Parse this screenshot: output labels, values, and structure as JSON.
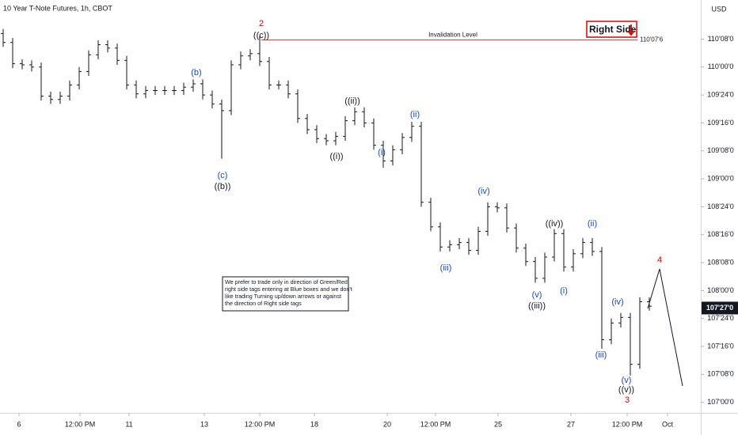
{
  "chart_data": {
    "type": "ohlc",
    "title": "10 Year T-Note Futures, 1h, CBOT",
    "currency": "USD",
    "color": "#131722",
    "open": [
      110.3,
      110.22,
      110.03,
      110.02,
      110.0,
      109.74,
      109.71,
      109.74,
      109.84,
      109.96,
      110.11,
      110.2,
      110.17,
      110.06,
      109.84,
      109.76,
      109.79,
      109.79,
      109.79,
      109.79,
      109.82,
      109.85,
      109.75,
      109.67,
      109.61,
      110.02,
      110.1,
      110.12,
      110.05,
      109.84,
      109.84,
      109.76,
      109.54,
      109.44,
      109.36,
      109.34,
      109.38,
      109.52,
      109.6,
      109.5,
      109.3,
      109.16,
      109.26,
      109.37,
      109.47,
      108.79,
      108.57,
      108.39,
      108.41,
      108.43,
      108.36,
      108.53,
      108.75,
      108.74,
      108.56,
      108.38,
      108.26,
      108.11,
      108.3,
      108.51,
      108.21,
      108.33,
      108.43,
      108.35,
      107.56,
      107.71,
      107.76,
      107.34,
      107.9
    ],
    "high": [
      110.34,
      110.26,
      110.07,
      110.06,
      110.04,
      109.78,
      109.78,
      109.88,
      110.0,
      110.15,
      110.24,
      110.24,
      110.21,
      110.1,
      109.88,
      109.83,
      109.83,
      109.83,
      109.83,
      109.86,
      109.89,
      109.89,
      109.79,
      109.71,
      110.06,
      110.14,
      110.16,
      110.28,
      110.09,
      109.88,
      109.88,
      109.8,
      109.58,
      109.48,
      109.4,
      109.42,
      109.56,
      109.64,
      109.64,
      109.54,
      109.34,
      109.3,
      109.41,
      109.51,
      109.51,
      108.83,
      108.61,
      108.45,
      108.47,
      108.47,
      108.57,
      108.79,
      108.79,
      108.78,
      108.6,
      108.42,
      108.3,
      108.34,
      108.55,
      108.55,
      108.37,
      108.47,
      108.47,
      108.39,
      107.75,
      107.8,
      107.8,
      107.94,
      107.94
    ],
    "low": [
      110.18,
      109.99,
      109.98,
      109.96,
      109.7,
      109.67,
      109.67,
      109.7,
      109.8,
      109.92,
      110.07,
      110.13,
      110.02,
      109.8,
      109.72,
      109.72,
      109.75,
      109.75,
      109.75,
      109.75,
      109.78,
      109.71,
      109.63,
      109.18,
      109.57,
      109.98,
      110.06,
      110.01,
      109.8,
      109.8,
      109.72,
      109.5,
      109.4,
      109.32,
      109.3,
      109.3,
      109.34,
      109.48,
      109.46,
      109.26,
      109.1,
      109.12,
      109.22,
      109.33,
      108.75,
      108.53,
      108.35,
      108.35,
      108.37,
      108.32,
      108.32,
      108.49,
      108.7,
      108.52,
      108.34,
      108.22,
      108.07,
      108.07,
      108.26,
      108.17,
      108.17,
      108.29,
      108.31,
      107.48,
      107.52,
      107.67,
      107.24,
      107.3,
      107.82
    ],
    "close": [
      110.22,
      110.03,
      110.02,
      110.0,
      109.74,
      109.71,
      109.74,
      109.84,
      109.96,
      110.11,
      110.2,
      110.17,
      110.06,
      109.84,
      109.76,
      109.79,
      109.79,
      109.79,
      109.79,
      109.82,
      109.85,
      109.75,
      109.67,
      109.61,
      110.02,
      110.1,
      110.12,
      110.05,
      109.84,
      109.84,
      109.76,
      109.54,
      109.44,
      109.36,
      109.34,
      109.38,
      109.52,
      109.6,
      109.5,
      109.3,
      109.16,
      109.26,
      109.37,
      109.47,
      108.79,
      108.57,
      108.39,
      108.41,
      108.43,
      108.36,
      108.53,
      108.75,
      108.74,
      108.56,
      108.38,
      108.26,
      108.11,
      108.3,
      108.51,
      108.21,
      108.33,
      108.43,
      108.35,
      107.56,
      107.71,
      107.76,
      107.34,
      107.9,
      107.86
    ],
    "xlim": [
      -0.333,
      73.0
    ],
    "xticks": [
      {
        "value": 1.67,
        "label": "6"
      },
      {
        "value": 8.08,
        "label": "12:00 PM"
      },
      {
        "value": 13.25,
        "label": "11"
      },
      {
        "value": 21.17,
        "label": "13"
      },
      {
        "value": 27.0,
        "label": "12:00 PM"
      },
      {
        "value": 32.75,
        "label": "18"
      },
      {
        "value": 40.42,
        "label": "20"
      },
      {
        "value": 45.5,
        "label": "12:00 PM"
      },
      {
        "value": 52.08,
        "label": "25"
      },
      {
        "value": 59.75,
        "label": "27"
      },
      {
        "value": 65.67,
        "label": "12:00 PM"
      },
      {
        "value": 69.92,
        "label": "Oct"
      }
    ],
    "ylim": [
      106.92,
      110.6
    ],
    "yticks": [
      {
        "value": 110.25,
        "label": "110'08'0"
      },
      {
        "value": 110.0,
        "label": "110'00'0"
      },
      {
        "value": 109.75,
        "label": "109'24'0"
      },
      {
        "value": 109.5,
        "label": "109'16'0"
      },
      {
        "value": 109.25,
        "label": "109'08'0"
      },
      {
        "value": 109.0,
        "label": "109'00'0"
      },
      {
        "value": 108.75,
        "label": "108'24'0"
      },
      {
        "value": 108.5,
        "label": "108'16'0"
      },
      {
        "value": 108.25,
        "label": "108'08'0"
      },
      {
        "value": 108.0,
        "label": "108'00'0"
      },
      {
        "value": 107.75,
        "label": "107'24'0"
      },
      {
        "value": 107.5,
        "label": "107'16'0"
      },
      {
        "value": 107.25,
        "label": "107'08'0"
      },
      {
        "value": 107.0,
        "label": "107'00'0"
      }
    ],
    "current_price": {
      "value": 107.84375,
      "label": "107'27'0"
    },
    "invalidation": {
      "text": "Invalidation Level",
      "value": 110.2422,
      "label": "110'07'6",
      "color": "#e53935"
    },
    "tag": {
      "text": "Right Side",
      "color": "#e00000"
    },
    "note": [
      "We prefer to trade only in direction of Green/Red",
      "right side tags entering at Blue boxes and we don't",
      "like trading Turning up/down arrows or against",
      "the direction of Right side tags"
    ],
    "annotations": [
      {
        "text": "2",
        "color": "#d50000"
      },
      {
        "text": "((c))",
        "color": "#131722"
      },
      {
        "text": "(b)",
        "color": "#1848cc"
      },
      {
        "text": "(c)",
        "color": "#1848cc"
      },
      {
        "text": "((b))",
        "color": "#131722"
      },
      {
        "text": "((i))",
        "color": "#131722"
      },
      {
        "text": "((ii))",
        "color": "#131722"
      },
      {
        "text": "(i)",
        "color": "#1848cc"
      },
      {
        "text": "(ii)",
        "color": "#1848cc"
      },
      {
        "text": "(iii)",
        "color": "#1848cc"
      },
      {
        "text": "(iv)",
        "color": "#1848cc"
      },
      {
        "text": "((iv))",
        "color": "#131722"
      },
      {
        "text": "(ii)",
        "color": "#1848cc"
      },
      {
        "text": "(v)",
        "color": "#1848cc"
      },
      {
        "text": "((iii))",
        "color": "#131722"
      },
      {
        "text": "(i)",
        "color": "#1848cc"
      },
      {
        "text": "(iii)",
        "color": "#1848cc"
      },
      {
        "text": "(iv)",
        "color": "#1848cc"
      },
      {
        "text": "(v)",
        "color": "#1848cc"
      },
      {
        "text": "((v))",
        "color": "#131722"
      },
      {
        "text": "3",
        "color": "#d50000"
      },
      {
        "text": "4",
        "color": "#d50000"
      }
    ]
  }
}
